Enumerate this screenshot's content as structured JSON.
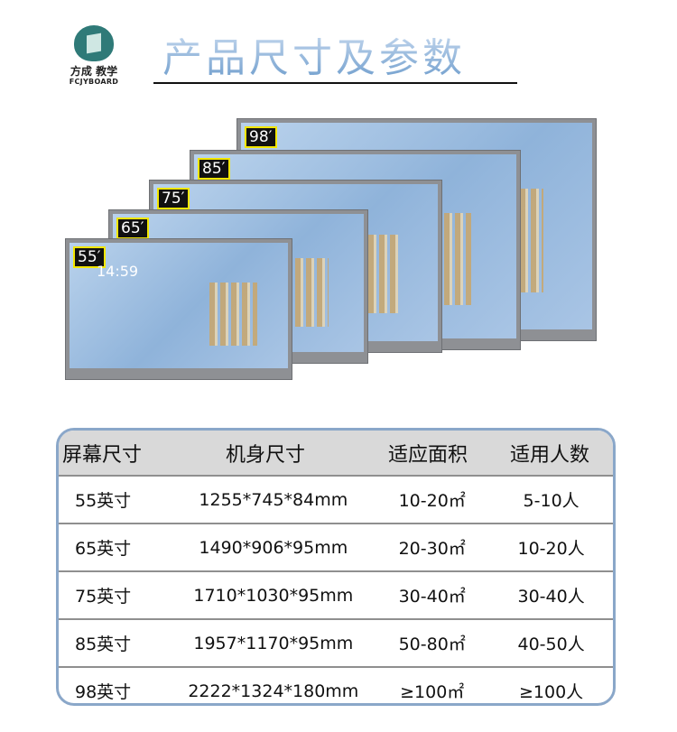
{
  "brand": {
    "name_cn": "方成 教学",
    "name_en": "FCJYBOARD"
  },
  "title": "产品尺寸及参数",
  "monitors": [
    {
      "label": "98′"
    },
    {
      "label": "85′"
    },
    {
      "label": "75′"
    },
    {
      "label": "65′"
    },
    {
      "label": "55′"
    }
  ],
  "screen_clock": "14:59",
  "table": {
    "headers": [
      "屏幕尺寸",
      "机身尺寸",
      "适应面积",
      "适用人数"
    ],
    "rows": [
      [
        "55英寸",
        "1255*745*84mm",
        "10-20㎡",
        "5-10人"
      ],
      [
        "65英寸",
        "1490*906*95mm",
        "20-30㎡",
        "10-20人"
      ],
      [
        "75英寸",
        "1710*1030*95mm",
        "30-40㎡",
        "30-40人"
      ],
      [
        "85英寸",
        "1957*1170*95mm",
        "50-80㎡",
        "40-50人"
      ],
      [
        "98英寸",
        "2222*1324*180mm",
        "≥100㎡",
        "≥100人"
      ]
    ]
  },
  "colors": {
    "table_border": "#8aa7c9",
    "header_bg": "#d9d9d9",
    "label_border": "#f2e600"
  }
}
